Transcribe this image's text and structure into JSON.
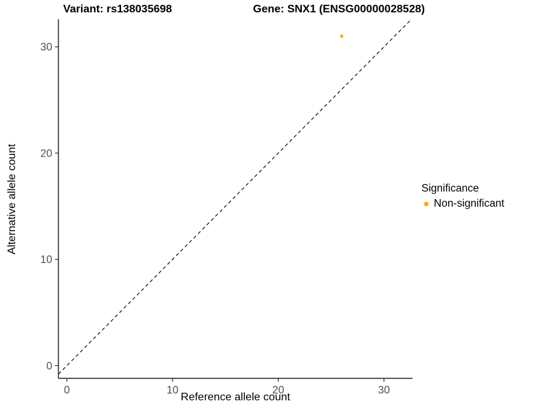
{
  "titles": {
    "variant": "Variant: rs138035698",
    "gene": "Gene: SNX1 (ENSG00000028528)"
  },
  "axes": {
    "x_label": "Reference allele count",
    "y_label": "Alternative allele count"
  },
  "legend": {
    "title": "Significance",
    "items": [
      {
        "label": "Non-significant",
        "color": "#FFA500"
      }
    ]
  },
  "chart_data": {
    "type": "scatter",
    "title": "Variant: rs138035698   Gene: SNX1 (ENSG00000028528)",
    "xlabel": "Reference allele count",
    "ylabel": "Alternative allele count",
    "xlim": [
      -0.8,
      32.7
    ],
    "ylim": [
      -1.2,
      32.6
    ],
    "x_ticks": [
      0,
      10,
      20,
      30
    ],
    "y_ticks": [
      0,
      10,
      20,
      30
    ],
    "grid": false,
    "legend_position": "right",
    "axis_color": "#000000",
    "tick_color": "#333333",
    "tick_label_color": "#4d4d4d",
    "series": [
      {
        "name": "Non-significant",
        "color": "#FFA500",
        "points": [
          {
            "x": 26,
            "y": 31
          }
        ]
      }
    ],
    "reference_line": {
      "type": "identity",
      "slope": 1,
      "intercept": 0,
      "style": "dashed",
      "color": "#000000"
    }
  }
}
